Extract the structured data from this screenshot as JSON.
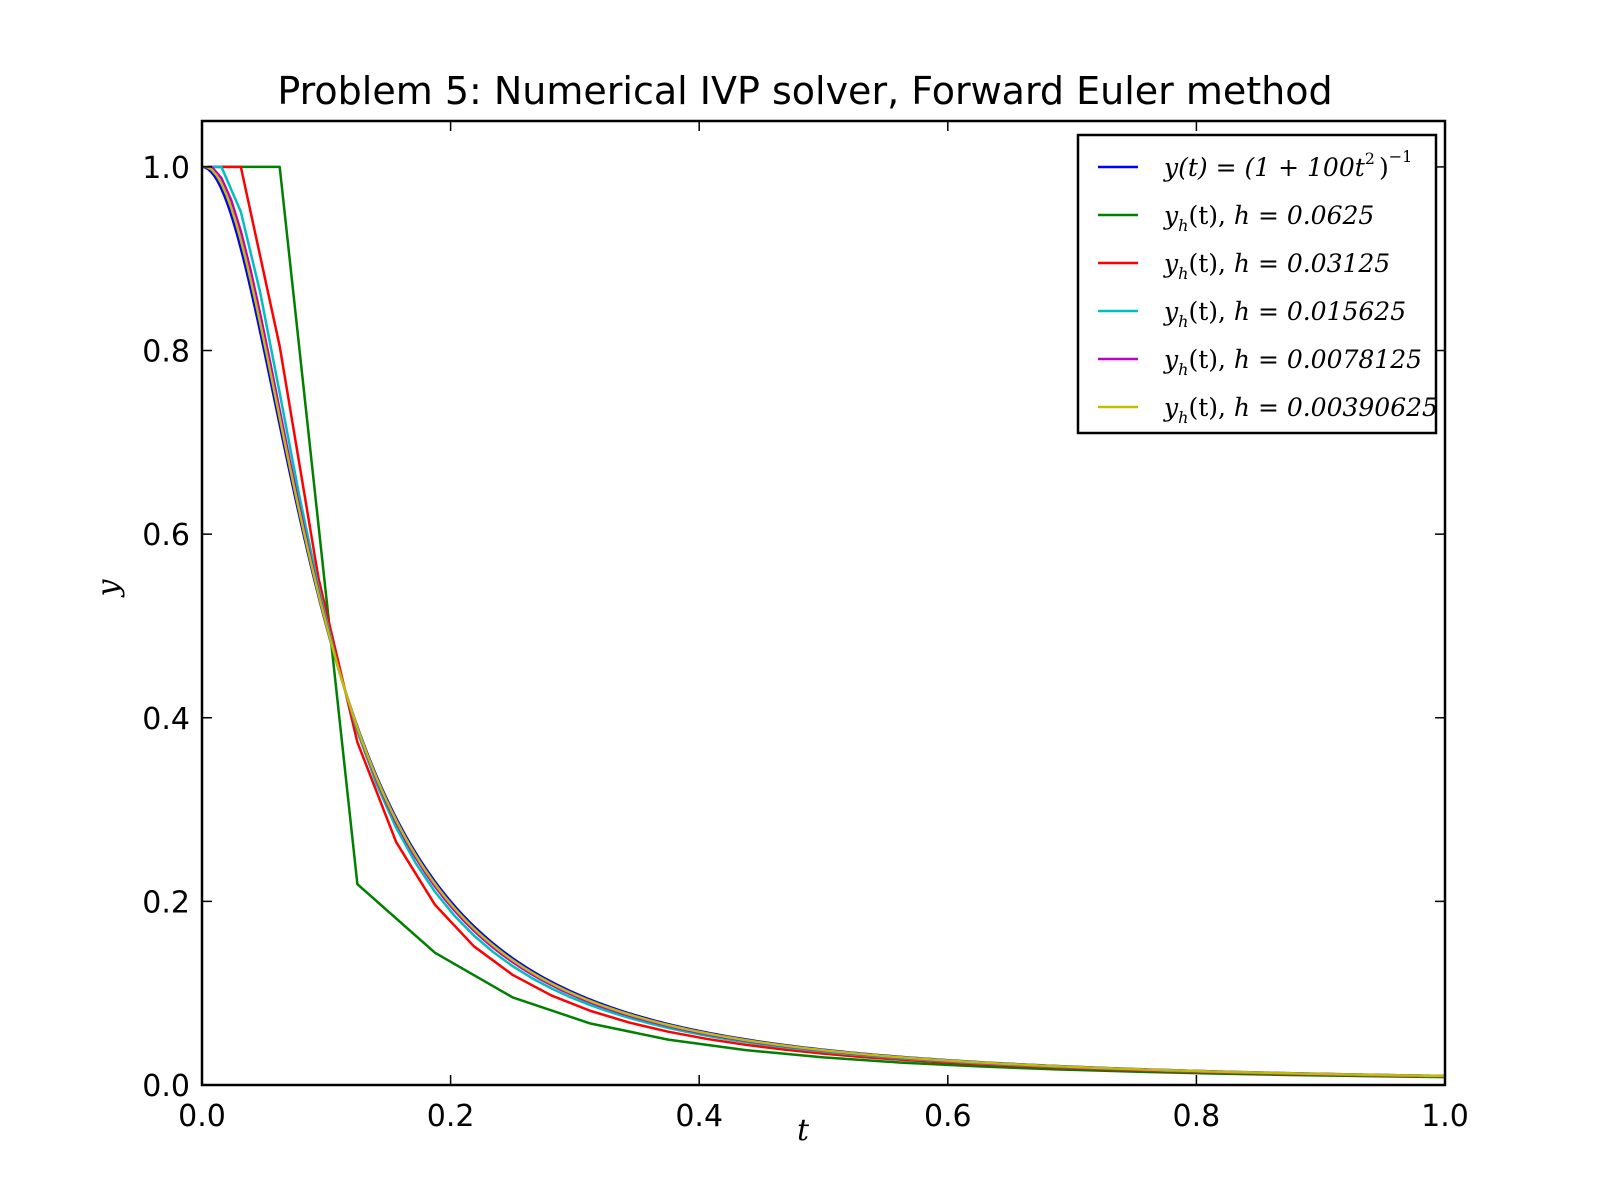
{
  "chart_data": {
    "type": "line",
    "title": "Problem 5: Numerical IVP solver, Forward Euler method",
    "xlabel": "t",
    "ylabel": "y",
    "xlim": [
      0.0,
      1.0
    ],
    "ylim": [
      0.0,
      1.05
    ],
    "xticks": [
      "0.0",
      "0.2",
      "0.4",
      "0.6",
      "0.8",
      "1.0"
    ],
    "yticks": [
      "0.0",
      "0.2",
      "0.4",
      "0.6",
      "0.8",
      "1.0"
    ],
    "grid": false,
    "legend_position": "top-right",
    "series": [
      {
        "legend": {
          "pre": "y(t) = (1 + 100t",
          "sup": "2",
          "post": ")",
          "sup2": "−1"
        },
        "color": "#0000ff",
        "kind": "exact"
      },
      {
        "legend": {
          "y": "y",
          "sub": "h",
          "mid": "(t), ",
          "h": "h = 0.0625"
        },
        "color": "#008000",
        "kind": "euler",
        "h": 0.0625
      },
      {
        "legend": {
          "y": "y",
          "sub": "h",
          "mid": "(t), ",
          "h": "h = 0.03125"
        },
        "color": "#ff0000",
        "kind": "euler",
        "h": 0.03125
      },
      {
        "legend": {
          "y": "y",
          "sub": "h",
          "mid": "(t), ",
          "h": "h = 0.015625"
        },
        "color": "#00bfbf",
        "kind": "euler",
        "h": 0.015625
      },
      {
        "legend": {
          "y": "y",
          "sub": "h",
          "mid": "(t), ",
          "h": "h = 0.0078125"
        },
        "color": "#bf00bf",
        "kind": "euler",
        "h": 0.0078125
      },
      {
        "legend": {
          "y": "y",
          "sub": "h",
          "mid": "(t), ",
          "h": "h = 0.00390625"
        },
        "color": "#bfbf00",
        "kind": "euler",
        "h": 0.00390625
      }
    ]
  }
}
